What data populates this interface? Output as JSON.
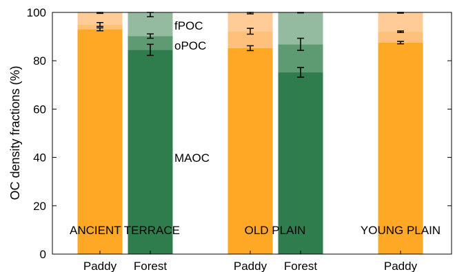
{
  "chart_data": {
    "type": "bar",
    "stacked": true,
    "ylabel": "OC density fractions (%)",
    "ylim": [
      0,
      100
    ],
    "yticks": [
      0,
      20,
      40,
      60,
      80,
      100
    ],
    "grid": false,
    "fraction_order": [
      "MAOC",
      "oPOC",
      "fPOC"
    ],
    "fraction_labels": [
      "MAOC",
      "oPOC",
      "fPOC"
    ],
    "group_labels": [
      "ANCIENT TERRACE",
      "OLD PLAIN",
      "YOUNG PLAIN"
    ],
    "colors": {
      "paddy": [
        "#FFA826",
        "#FFC17A",
        "#FFCC98"
      ],
      "forest": [
        "#2F7C4C",
        "#5E9A72",
        "#94BBA0"
      ]
    },
    "bars": [
      {
        "category": "Paddy",
        "group": "ANCIENT TERRACE",
        "land_use": "paddy",
        "cumulative": [
          93,
          95,
          100
        ],
        "errors": [
          0.6,
          0.8,
          0.4
        ]
      },
      {
        "category": "Forest",
        "group": "ANCIENT TERRACE",
        "land_use": "forest",
        "cumulative": [
          84.5,
          90.2,
          100
        ],
        "errors": [
          2.3,
          0.9,
          1.8
        ]
      },
      {
        "category": "Paddy",
        "group": "OLD PLAIN",
        "land_use": "paddy",
        "cumulative": [
          85.2,
          92.2,
          100
        ],
        "errors": [
          1.0,
          1.2,
          0.6
        ]
      },
      {
        "category": "Forest",
        "group": "OLD PLAIN",
        "land_use": "forest",
        "cumulative": [
          75.2,
          86.8,
          100
        ],
        "errors": [
          2.0,
          2.5,
          0.2
        ]
      },
      {
        "category": "Paddy",
        "group": "YOUNG PLAIN",
        "land_use": "paddy",
        "cumulative": [
          87.5,
          92.0,
          100
        ],
        "errors": [
          0.5,
          0.3,
          0.3
        ]
      }
    ]
  }
}
